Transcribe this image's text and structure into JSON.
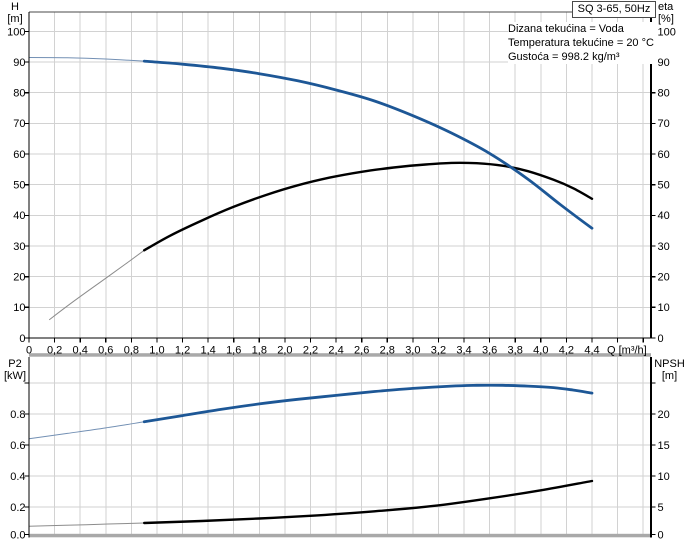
{
  "header": {
    "left_axis_title": "H",
    "left_axis_unit": "[m]",
    "right_axis_title": "eta",
    "right_axis_unit": "[%]",
    "title_box": "SQ 3-65, 50Hz",
    "info_lines": [
      "Dizana tekućina = Voda",
      "Temperatura tekućine = 20 °C",
      "Gustoća = 998.2 kg/m³"
    ]
  },
  "bottom_header": {
    "left_axis_title": "P2",
    "left_axis_unit": "[kW]",
    "right_axis_title": "NPSH",
    "right_axis_unit": "[m]"
  },
  "x_axis": {
    "label": "Q [m³/h]",
    "tick_labels": [
      "0",
      "0,2",
      "0,4",
      "0,6",
      "0,8",
      "1,0",
      "1,2",
      "1,4",
      "1,6",
      "1,8",
      "2,0",
      "2,2",
      "2,4",
      "2,6",
      "2,8",
      "3,0",
      "3,2",
      "3,4",
      "3,6",
      "3,8",
      "4,0",
      "4,2",
      "4,4"
    ]
  },
  "colors": {
    "curve_blue": "#1d5796",
    "curve_black": "#000000",
    "thin_blue": "#7390b4",
    "thin_gray": "#8c8c8c",
    "grid": "#d2d2d2",
    "frame_bar": "#a9a9a9",
    "axis": "#000000",
    "frame_line": "#4a4a4a"
  },
  "chart_data": [
    {
      "type": "line",
      "title": "SQ 3-65, 50Hz",
      "xlabel": "Q [m³/h]",
      "ylabel_left": "H [m]",
      "ylabel_right": "eta [%]",
      "xlim": [
        0,
        4.86
      ],
      "ylim": [
        0,
        106
      ],
      "grid": true,
      "x_ticks": [
        0,
        0.2,
        0.4,
        0.6,
        0.8,
        1.0,
        1.2,
        1.4,
        1.6,
        1.8,
        2.0,
        2.2,
        2.4,
        2.6,
        2.8,
        3.0,
        3.2,
        3.4,
        3.6,
        3.8,
        4.0,
        4.2,
        4.4
      ],
      "y_ticks": [
        0,
        10,
        20,
        30,
        40,
        50,
        60,
        70,
        80,
        90,
        100
      ],
      "y_tick_labels": [
        "0",
        "10",
        "20",
        "30",
        "40",
        "50",
        "60",
        "70",
        "80",
        "90",
        "100"
      ],
      "series": [
        {
          "name": "eta",
          "axis": "right",
          "color_role": "black",
          "thin_until": 0.9,
          "points": [
            [
              0.16,
              6
            ],
            [
              0.35,
              12
            ],
            [
              0.55,
              18
            ],
            [
              0.75,
              24
            ],
            [
              0.9,
              28.6
            ],
            [
              1.1,
              33.3
            ],
            [
              1.35,
              38.3
            ],
            [
              1.6,
              42.8
            ],
            [
              1.85,
              46.6
            ],
            [
              2.1,
              49.8
            ],
            [
              2.35,
              52.3
            ],
            [
              2.6,
              54.2
            ],
            [
              2.85,
              55.6
            ],
            [
              3.1,
              56.6
            ],
            [
              3.3,
              57.1
            ],
            [
              3.5,
              57.0
            ],
            [
              3.7,
              56.2
            ],
            [
              3.9,
              54.4
            ],
            [
              4.1,
              51.6
            ],
            [
              4.25,
              48.9
            ],
            [
              4.4,
              45.4
            ]
          ]
        },
        {
          "name": "H",
          "axis": "left",
          "color_role": "blue",
          "thin_until": 0.9,
          "points": [
            [
              0,
              91.5
            ],
            [
              0.3,
              91.4
            ],
            [
              0.6,
              91.0
            ],
            [
              0.9,
              90.3
            ],
            [
              1.2,
              89.3
            ],
            [
              1.5,
              88.0
            ],
            [
              1.8,
              86.2
            ],
            [
              2.1,
              83.9
            ],
            [
              2.4,
              80.9
            ],
            [
              2.7,
              77.3
            ],
            [
              3.0,
              72.5
            ],
            [
              3.3,
              66.9
            ],
            [
              3.6,
              60.2
            ],
            [
              3.9,
              51.8
            ],
            [
              4.15,
              43.6
            ],
            [
              4.4,
              35.8
            ]
          ]
        }
      ]
    },
    {
      "type": "line",
      "ylabel_left": "P2 [kW]",
      "ylabel_right": "NPSH [m]",
      "xlim": [
        0,
        4.86
      ],
      "ylim_left": [
        0,
        1.17
      ],
      "ylim_right": [
        0,
        29.2
      ],
      "grid": true,
      "y_ticks_left": [
        0,
        0.2,
        0.4,
        0.6,
        0.8,
        1.0
      ],
      "y_tick_labels_left": [
        "0.0",
        "0.2",
        "0.4",
        "0.6",
        "0.8",
        ""
      ],
      "y_ticks_right": [
        0,
        5,
        10,
        15,
        20,
        25
      ],
      "y_tick_labels_right": [
        "0",
        "5",
        "10",
        "15",
        "20",
        ""
      ],
      "series": [
        {
          "name": "NPSH",
          "axis": "right",
          "color_role": "black",
          "thin_until": 0.9,
          "points": [
            [
              0,
              1.9
            ],
            [
              0.45,
              2.15
            ],
            [
              0.9,
              2.42
            ],
            [
              1.35,
              2.75
            ],
            [
              1.8,
              3.15
            ],
            [
              2.25,
              3.65
            ],
            [
              2.7,
              4.3
            ],
            [
              3.15,
              5.15
            ],
            [
              3.6,
              6.4
            ],
            [
              4.0,
              7.7
            ],
            [
              4.4,
              9.2
            ]
          ]
        },
        {
          "name": "P2",
          "axis": "left",
          "color_role": "blue",
          "thin_until": 0.9,
          "points": [
            [
              0,
              0.64
            ],
            [
              0.3,
              0.675
            ],
            [
              0.6,
              0.71
            ],
            [
              0.9,
              0.75
            ],
            [
              1.2,
              0.79
            ],
            [
              1.5,
              0.83
            ],
            [
              1.8,
              0.865
            ],
            [
              2.1,
              0.895
            ],
            [
              2.4,
              0.92
            ],
            [
              2.7,
              0.945
            ],
            [
              3.0,
              0.965
            ],
            [
              3.3,
              0.98
            ],
            [
              3.5,
              0.985
            ],
            [
              3.7,
              0.985
            ],
            [
              3.9,
              0.98
            ],
            [
              4.1,
              0.97
            ],
            [
              4.25,
              0.955
            ],
            [
              4.4,
              0.935
            ]
          ]
        }
      ]
    }
  ]
}
